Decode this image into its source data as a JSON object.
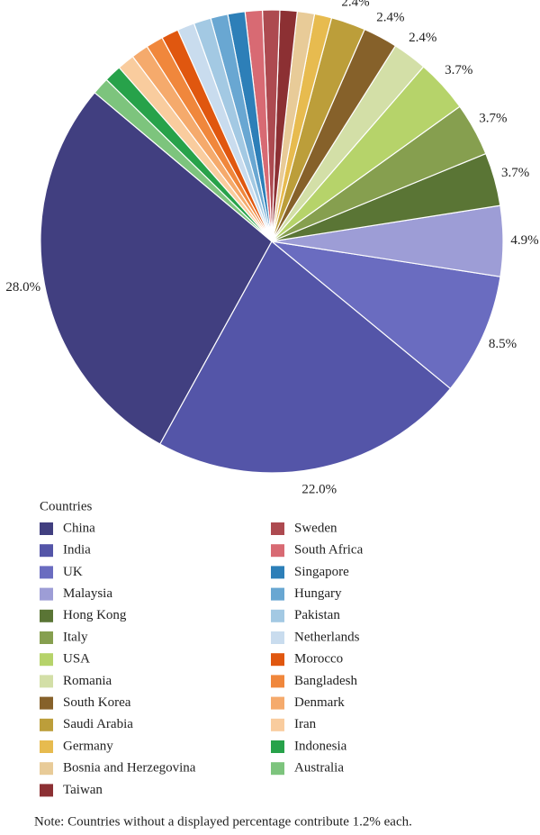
{
  "chart_data": {
    "type": "pie",
    "legend_title": "Countries",
    "categories": [
      "China",
      "India",
      "UK",
      "Malaysia",
      "Hong Kong",
      "Italy",
      "USA",
      "Romania",
      "South Korea",
      "Saudi Arabia",
      "Germany",
      "Bosnia and Herzegovina",
      "Taiwan",
      "Sweden",
      "South Africa",
      "Singapore",
      "Hungary",
      "Pakistan",
      "Netherlands",
      "Morocco",
      "Bangladesh",
      "Denmark",
      "Iran",
      "Indonesia",
      "Australia"
    ],
    "values": [
      28.0,
      22.0,
      8.5,
      4.9,
      3.7,
      3.7,
      3.7,
      2.4,
      2.4,
      2.4,
      1.2,
      1.2,
      1.2,
      1.2,
      1.2,
      1.2,
      1.2,
      1.2,
      1.2,
      1.2,
      1.2,
      1.2,
      1.2,
      1.2,
      1.2
    ],
    "value_labels": [
      "28.0%",
      "22.0%",
      "8.5%",
      "4.9%",
      "3.7%",
      "3.7%",
      "3.7%",
      "2.4%",
      "2.4%",
      "2.4%",
      null,
      null,
      null,
      null,
      null,
      null,
      null,
      null,
      null,
      null,
      null,
      null,
      null,
      null,
      null
    ],
    "colors": [
      "#413f80",
      "#5455a8",
      "#6a6cc0",
      "#9d9dd6",
      "#5a7535",
      "#869f4f",
      "#b6d36a",
      "#d3dfa7",
      "#86612a",
      "#bc9e3a",
      "#e7bb4f",
      "#e8cb98",
      "#8c3033",
      "#ad4a50",
      "#d86a73",
      "#2d7fb8",
      "#69a7d2",
      "#a3c9e3",
      "#c9dcee",
      "#e0570f",
      "#f0873c",
      "#f5aa6c",
      "#f9cc9e",
      "#27a24a",
      "#7dc47d"
    ],
    "note": "Note: Countries without a displayed percentage contribute 1.2% each."
  }
}
